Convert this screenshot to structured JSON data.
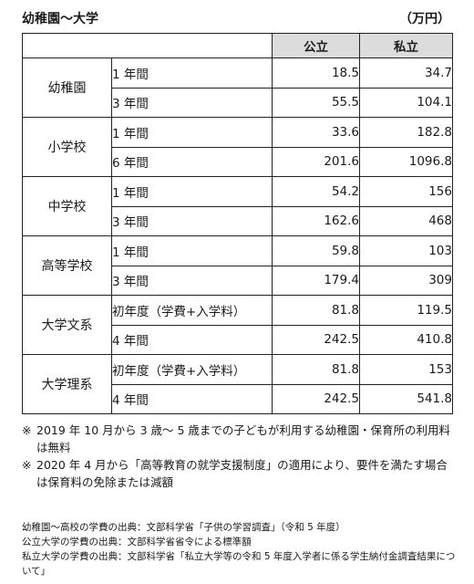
{
  "title": "幼稚園〜大学",
  "unit": "（万円）",
  "table": {
    "headers": [
      "公立",
      "私立"
    ],
    "groups": [
      {
        "name": "幼稚園",
        "rows": [
          {
            "period": "1 年間",
            "public": "18.5",
            "private": "34.7"
          },
          {
            "period": "3 年間",
            "public": "55.5",
            "private": "104.1"
          }
        ]
      },
      {
        "name": "小学校",
        "rows": [
          {
            "period": "1 年間",
            "public": "33.6",
            "private": "182.8"
          },
          {
            "period": "6 年間",
            "public": "201.6",
            "private": "1096.8"
          }
        ]
      },
      {
        "name": "中学校",
        "rows": [
          {
            "period": "1 年間",
            "public": "54.2",
            "private": "156"
          },
          {
            "period": "3 年間",
            "public": "162.6",
            "private": "468"
          }
        ]
      },
      {
        "name": "高等学校",
        "rows": [
          {
            "period": "1 年間",
            "public": "59.8",
            "private": "103"
          },
          {
            "period": "3 年間",
            "public": "179.4",
            "private": "309"
          }
        ]
      },
      {
        "name": "大学文系",
        "rows": [
          {
            "period": "初年度（学費+入学料）",
            "public": "81.8",
            "private": "119.5"
          },
          {
            "period": "4 年間",
            "public": "242.5",
            "private": "410.8"
          }
        ]
      },
      {
        "name": "大学理系",
        "rows": [
          {
            "period": "初年度（学費+入学料）",
            "public": "81.8",
            "private": "153"
          },
          {
            "period": "4 年間",
            "public": "242.5",
            "private": "541.8"
          }
        ]
      }
    ]
  },
  "notes": [
    {
      "mark": "※",
      "text": "2019 年 10 月から 3 歳〜 5 歳までの子どもが利用する幼稚園・保育所の利用料は無料"
    },
    {
      "mark": "※",
      "text": "2020 年 4 月から「高等教育の就学支援制度」の適用により、要件を満たす場合は保育料の免除または減額"
    }
  ],
  "sources": [
    "幼稚園〜高校の学費の出典：文部科学省「子供の学習調査」（令和 5 年度）",
    "公立大学の学費の出典：文部科学省省令による標準額",
    "私立大学の学費の出典：文部科学省「私立大学等の令和 5 年度入学者に係る学生納付金調査結果について」"
  ]
}
